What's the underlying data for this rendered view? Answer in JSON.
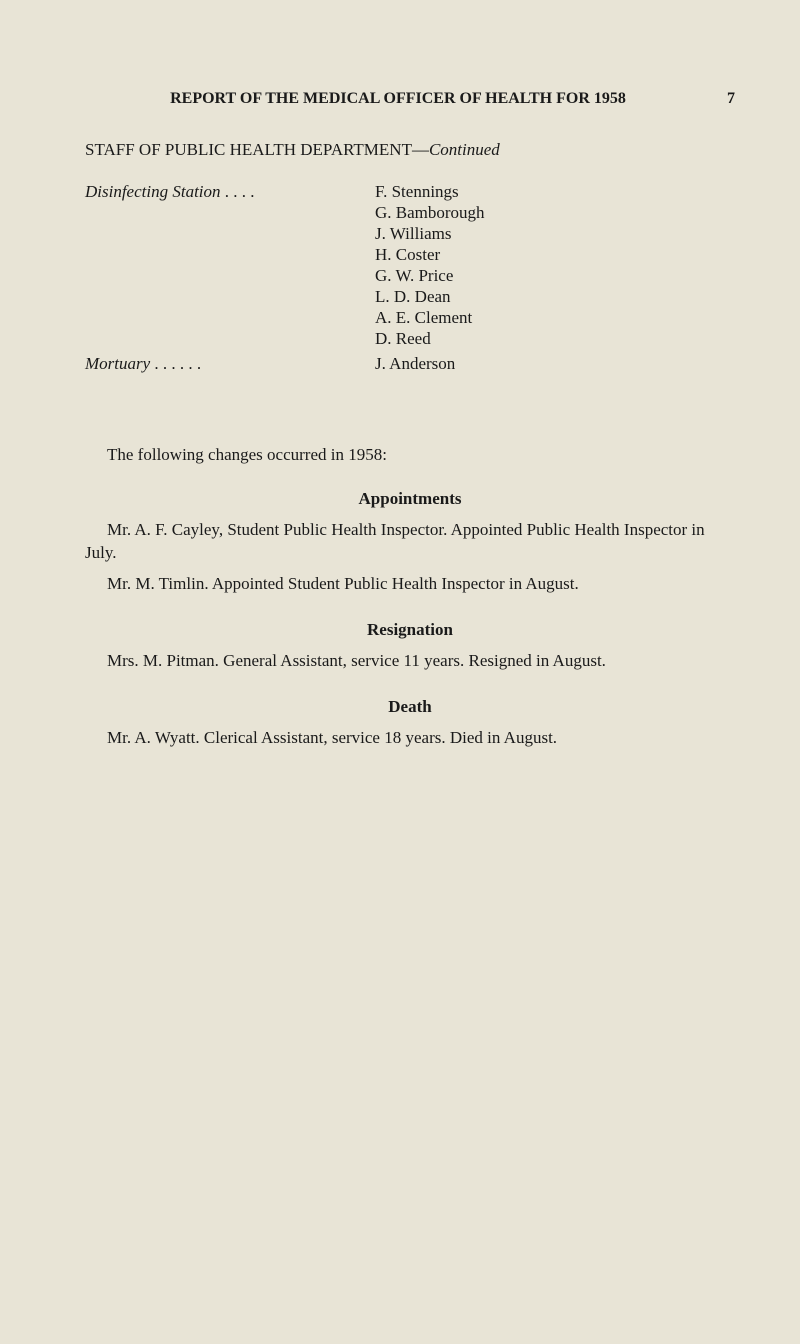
{
  "colors": {
    "paper": "#e8e4d6",
    "text": "#1a1a1a"
  },
  "typography": {
    "body_fontsize_pt": 12,
    "header_fontsize_pt": 12,
    "font_family": "Georgia, Times New Roman, serif"
  },
  "page_number": "7",
  "header": "REPORT OF THE MEDICAL OFFICER OF HEALTH FOR 1958",
  "section_title_part1": "STAFF OF PUBLIC HEALTH DEPARTMENT—",
  "section_title_part2_italic": "Continued",
  "staff": [
    {
      "label_italic": "Disinfecting Station",
      "label_dots": "   . .        . .",
      "names": [
        "F. Stennings",
        "G. Bamborough",
        "J. Williams",
        "H. Coster",
        "G. W. Price",
        "L. D. Dean",
        "A. E. Clement",
        "D. Reed"
      ]
    },
    {
      "label_italic": "Mortuary",
      "label_dots": "              . .         . .        . .",
      "names": [
        "J. Anderson"
      ]
    }
  ],
  "changes_intro": "The following changes occurred in 1958:",
  "subsections": [
    {
      "heading": "Appointments",
      "paragraphs": [
        "Mr. A. F. Cayley, Student Public Health Inspector. Appointed Public Health Inspector in July.",
        "Mr. M. Timlin. Appointed Student Public Health Inspector in August."
      ]
    },
    {
      "heading": "Resignation",
      "paragraphs": [
        "Mrs. M. Pitman. General Assistant, service 11 years. Resigned in August."
      ]
    },
    {
      "heading": "Death",
      "paragraphs": [
        "Mr. A. Wyatt. Clerical Assistant, service 18 years. Died in August."
      ]
    }
  ]
}
